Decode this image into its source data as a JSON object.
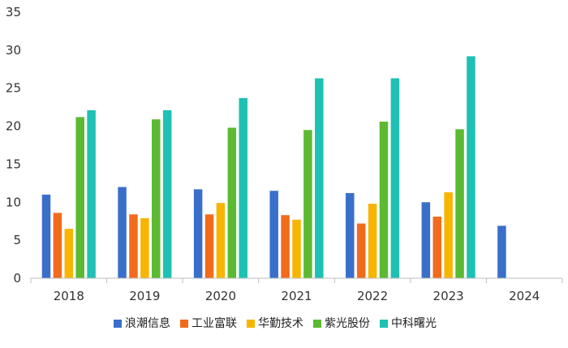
{
  "chart_data": {
    "type": "bar",
    "title": "",
    "xlabel": "",
    "ylabel": "",
    "categories": [
      "2018",
      "2019",
      "2020",
      "2021",
      "2022",
      "2023",
      "2024"
    ],
    "ylim": [
      0,
      35
    ],
    "yticks": [
      0,
      5,
      10,
      15,
      20,
      25,
      30,
      35
    ],
    "grid": false,
    "legend_position": "bottom",
    "series": [
      {
        "name": "浪潮信息",
        "color": "#3a6fc9",
        "values": [
          11.0,
          12.0,
          11.7,
          11.5,
          11.2,
          10.0,
          6.9
        ]
      },
      {
        "name": "工业富联",
        "color": "#f26b1d",
        "values": [
          8.6,
          8.4,
          8.4,
          8.3,
          7.2,
          8.1,
          null
        ]
      },
      {
        "name": "华勤技术",
        "color": "#f7b500",
        "values": [
          6.5,
          7.9,
          9.9,
          7.7,
          9.8,
          11.3,
          null
        ]
      },
      {
        "name": "紫光股份",
        "color": "#5cb932",
        "values": [
          21.2,
          20.9,
          19.8,
          19.5,
          20.6,
          19.6,
          null
        ]
      },
      {
        "name": "中科曙光",
        "color": "#1ec1b3",
        "values": [
          22.1,
          22.1,
          23.7,
          26.3,
          26.3,
          29.2,
          null
        ]
      }
    ]
  }
}
